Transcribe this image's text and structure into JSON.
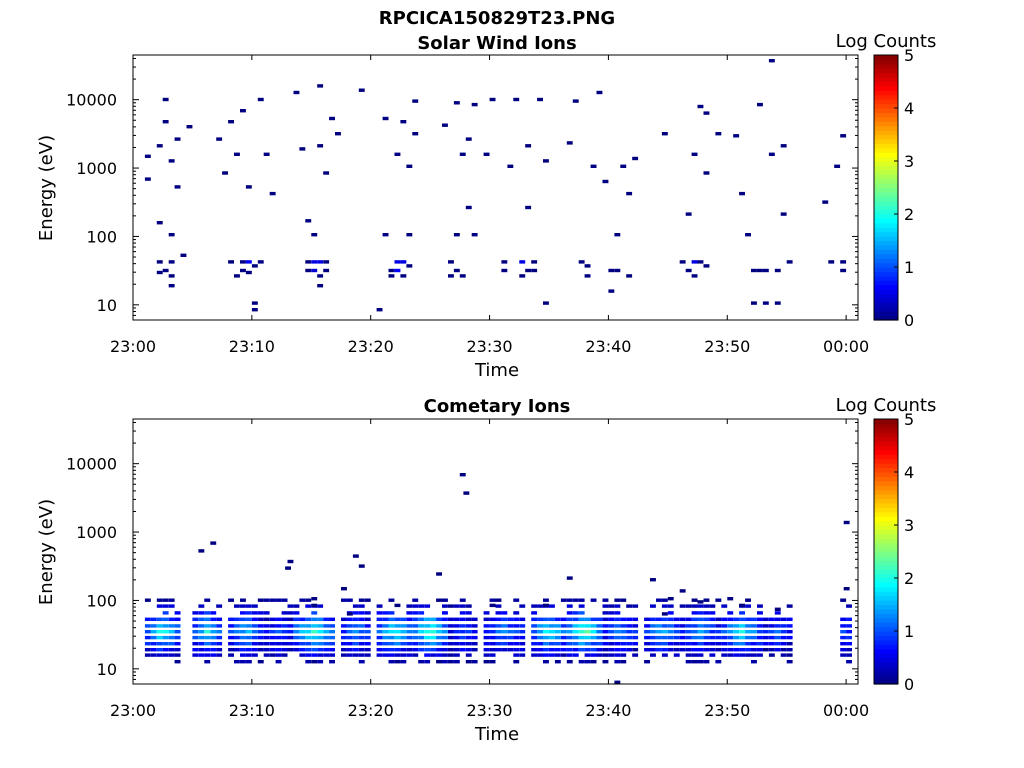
{
  "figure_title": "RPCICA150829T23.PNG",
  "chart_data": [
    {
      "type": "heatmap",
      "title": "Solar Wind Ions",
      "xlabel": "Time",
      "ylabel": "Energy (eV)",
      "y_scale": "log",
      "ylim": [
        6,
        45000
      ],
      "xlim": [
        "23:00",
        "00:01"
      ],
      "x_ticks": [
        "23:00",
        "23:10",
        "23:20",
        "23:30",
        "23:40",
        "23:50",
        "00:00"
      ],
      "y_ticks": [
        "10",
        "100",
        "1000",
        "10000"
      ],
      "colorbar": {
        "label": "Log Counts",
        "range": [
          0,
          5
        ],
        "ticks": [
          "0",
          "1",
          "2",
          "3",
          "4",
          "5"
        ],
        "colormap": "jet"
      },
      "grid": false,
      "cells": [
        {
          "t": 1.0,
          "e": 1400,
          "v": 0
        },
        {
          "t": 1.0,
          "e": 650,
          "v": 0
        },
        {
          "t": 2.0,
          "e": 40,
          "v": 0
        },
        {
          "t": 2.0,
          "e": 28,
          "v": 0
        },
        {
          "t": 2.0,
          "e": 150,
          "v": 0
        },
        {
          "t": 2.0,
          "e": 2000,
          "v": 0
        },
        {
          "t": 2.5,
          "e": 4500,
          "v": 0
        },
        {
          "t": 2.5,
          "e": 9500,
          "v": 0
        },
        {
          "t": 2.5,
          "e": 30,
          "v": 0
        },
        {
          "t": 3.0,
          "e": 40,
          "v": 0
        },
        {
          "t": 3.0,
          "e": 25,
          "v": 0
        },
        {
          "t": 3.0,
          "e": 18,
          "v": 0
        },
        {
          "t": 3.0,
          "e": 100,
          "v": 0
        },
        {
          "t": 3.5,
          "e": 2500,
          "v": 0
        },
        {
          "t": 3.5,
          "e": 500,
          "v": 0
        },
        {
          "t": 3.0,
          "e": 1200,
          "v": 0
        },
        {
          "t": 4.0,
          "e": 50,
          "v": 0
        },
        {
          "t": 4.5,
          "e": 3800,
          "v": 0
        },
        {
          "t": 7.0,
          "e": 2500,
          "v": 0
        },
        {
          "t": 7.5,
          "e": 800,
          "v": 0
        },
        {
          "t": 8.0,
          "e": 40,
          "v": 0
        },
        {
          "t": 8.0,
          "e": 4500,
          "v": 0
        },
        {
          "t": 8.5,
          "e": 25,
          "v": 0
        },
        {
          "t": 8.5,
          "e": 1500,
          "v": 0
        },
        {
          "t": 9.0,
          "e": 40,
          "v": 0
        },
        {
          "t": 9.0,
          "e": 30,
          "v": 0
        },
        {
          "t": 9.0,
          "e": 6500,
          "v": 0
        },
        {
          "t": 9.5,
          "e": 40,
          "v": 0.6
        },
        {
          "t": 9.5,
          "e": 28,
          "v": 0
        },
        {
          "t": 9.5,
          "e": 500,
          "v": 0
        },
        {
          "t": 10.0,
          "e": 35,
          "v": 0
        },
        {
          "t": 10.0,
          "e": 10,
          "v": 0
        },
        {
          "t": 10.0,
          "e": 8,
          "v": 0
        },
        {
          "t": 10.5,
          "e": 40,
          "v": 0
        },
        {
          "t": 10.5,
          "e": 9500,
          "v": 0
        },
        {
          "t": 11.0,
          "e": 1500,
          "v": 0
        },
        {
          "t": 11.5,
          "e": 400,
          "v": 0
        },
        {
          "t": 13.5,
          "e": 12000,
          "v": 0
        },
        {
          "t": 14.0,
          "e": 1800,
          "v": 0
        },
        {
          "t": 14.5,
          "e": 40,
          "v": 0
        },
        {
          "t": 14.5,
          "e": 30,
          "v": 0
        },
        {
          "t": 14.5,
          "e": 160,
          "v": 0
        },
        {
          "t": 15.0,
          "e": 40,
          "v": 0.5
        },
        {
          "t": 15.0,
          "e": 30,
          "v": 0.4
        },
        {
          "t": 15.0,
          "e": 100,
          "v": 0
        },
        {
          "t": 15.5,
          "e": 40,
          "v": 0.5
        },
        {
          "t": 15.5,
          "e": 25,
          "v": 0
        },
        {
          "t": 15.5,
          "e": 18,
          "v": 0
        },
        {
          "t": 15.5,
          "e": 2000,
          "v": 0
        },
        {
          "t": 16.0,
          "e": 40,
          "v": 0
        },
        {
          "t": 16.0,
          "e": 30,
          "v": 0
        },
        {
          "t": 16.0,
          "e": 800,
          "v": 0
        },
        {
          "t": 16.5,
          "e": 5000,
          "v": 0
        },
        {
          "t": 17.0,
          "e": 3000,
          "v": 0
        },
        {
          "t": 15.5,
          "e": 15000,
          "v": 0
        },
        {
          "t": 19.0,
          "e": 13000,
          "v": 0
        },
        {
          "t": 21.0,
          "e": 5000,
          "v": 0
        },
        {
          "t": 21.0,
          "e": 100,
          "v": 0
        },
        {
          "t": 21.5,
          "e": 30,
          "v": 0
        },
        {
          "t": 21.5,
          "e": 25,
          "v": 0
        },
        {
          "t": 22.0,
          "e": 40,
          "v": 0.5
        },
        {
          "t": 22.0,
          "e": 30,
          "v": 0.6
        },
        {
          "t": 22.0,
          "e": 1500,
          "v": 0
        },
        {
          "t": 22.5,
          "e": 40,
          "v": 0.5
        },
        {
          "t": 22.5,
          "e": 25,
          "v": 0
        },
        {
          "t": 22.5,
          "e": 4500,
          "v": 0
        },
        {
          "t": 23.0,
          "e": 35,
          "v": 0
        },
        {
          "t": 23.0,
          "e": 100,
          "v": 0
        },
        {
          "t": 23.0,
          "e": 1000,
          "v": 0
        },
        {
          "t": 23.5,
          "e": 3000,
          "v": 0
        },
        {
          "t": 23.5,
          "e": 9000,
          "v": 0
        },
        {
          "t": 20.5,
          "e": 8,
          "v": 0
        },
        {
          "t": 26.0,
          "e": 4000,
          "v": 0
        },
        {
          "t": 26.5,
          "e": 40,
          "v": 0
        },
        {
          "t": 26.5,
          "e": 25,
          "v": 0
        },
        {
          "t": 27.0,
          "e": 30,
          "v": 0
        },
        {
          "t": 27.0,
          "e": 100,
          "v": 0
        },
        {
          "t": 27.0,
          "e": 8500,
          "v": 0
        },
        {
          "t": 27.5,
          "e": 25,
          "v": 0
        },
        {
          "t": 27.5,
          "e": 1500,
          "v": 0
        },
        {
          "t": 28.0,
          "e": 2500,
          "v": 0
        },
        {
          "t": 28.0,
          "e": 250,
          "v": 0
        },
        {
          "t": 28.5,
          "e": 100,
          "v": 0
        },
        {
          "t": 28.5,
          "e": 8000,
          "v": 0
        },
        {
          "t": 29.5,
          "e": 1500,
          "v": 0
        },
        {
          "t": 30.0,
          "e": 9500,
          "v": 0
        },
        {
          "t": 31.0,
          "e": 40,
          "v": 0
        },
        {
          "t": 31.0,
          "e": 30,
          "v": 0
        },
        {
          "t": 31.5,
          "e": 1000,
          "v": 0
        },
        {
          "t": 32.0,
          "e": 9500,
          "v": 0
        },
        {
          "t": 32.5,
          "e": 40,
          "v": 0.5
        },
        {
          "t": 32.5,
          "e": 25,
          "v": 0
        },
        {
          "t": 33.0,
          "e": 30,
          "v": 0
        },
        {
          "t": 33.0,
          "e": 250,
          "v": 0
        },
        {
          "t": 33.0,
          "e": 2000,
          "v": 0
        },
        {
          "t": 33.5,
          "e": 40,
          "v": 0
        },
        {
          "t": 33.5,
          "e": 30,
          "v": 0
        },
        {
          "t": 34.0,
          "e": 9500,
          "v": 0
        },
        {
          "t": 34.5,
          "e": 1200,
          "v": 0
        },
        {
          "t": 34.5,
          "e": 10,
          "v": 0
        },
        {
          "t": 36.5,
          "e": 2200,
          "v": 0
        },
        {
          "t": 37.0,
          "e": 9000,
          "v": 0
        },
        {
          "t": 37.5,
          "e": 40,
          "v": 0
        },
        {
          "t": 38.0,
          "e": 35,
          "v": 0
        },
        {
          "t": 38.0,
          "e": 25,
          "v": 0
        },
        {
          "t": 38.5,
          "e": 1000,
          "v": 0
        },
        {
          "t": 39.0,
          "e": 12000,
          "v": 0
        },
        {
          "t": 39.5,
          "e": 600,
          "v": 0
        },
        {
          "t": 40.0,
          "e": 30,
          "v": 0
        },
        {
          "t": 40.0,
          "e": 15,
          "v": 0
        },
        {
          "t": 40.5,
          "e": 30,
          "v": 0
        },
        {
          "t": 40.5,
          "e": 100,
          "v": 0
        },
        {
          "t": 41.0,
          "e": 1000,
          "v": 0
        },
        {
          "t": 41.5,
          "e": 400,
          "v": 0
        },
        {
          "t": 41.5,
          "e": 25,
          "v": 0
        },
        {
          "t": 42.0,
          "e": 1300,
          "v": 0
        },
        {
          "t": 44.5,
          "e": 3000,
          "v": 0
        },
        {
          "t": 46.0,
          "e": 40,
          "v": 0
        },
        {
          "t": 46.5,
          "e": 30,
          "v": 0
        },
        {
          "t": 46.5,
          "e": 200,
          "v": 0
        },
        {
          "t": 47.0,
          "e": 40,
          "v": 0.5
        },
        {
          "t": 47.0,
          "e": 25,
          "v": 0
        },
        {
          "t": 47.0,
          "e": 1500,
          "v": 0
        },
        {
          "t": 47.5,
          "e": 40,
          "v": 0
        },
        {
          "t": 47.5,
          "e": 7500,
          "v": 0
        },
        {
          "t": 48.0,
          "e": 35,
          "v": 0
        },
        {
          "t": 48.0,
          "e": 800,
          "v": 0
        },
        {
          "t": 48.0,
          "e": 6000,
          "v": 0
        },
        {
          "t": 49.0,
          "e": 3000,
          "v": 0
        },
        {
          "t": 50.5,
          "e": 2800,
          "v": 0
        },
        {
          "t": 51.0,
          "e": 400,
          "v": 0
        },
        {
          "t": 51.5,
          "e": 100,
          "v": 0
        },
        {
          "t": 52.0,
          "e": 30,
          "v": 0
        },
        {
          "t": 52.0,
          "e": 10,
          "v": 0
        },
        {
          "t": 52.5,
          "e": 30,
          "v": 0
        },
        {
          "t": 52.5,
          "e": 8000,
          "v": 0
        },
        {
          "t": 53.0,
          "e": 30,
          "v": 0
        },
        {
          "t": 53.0,
          "e": 10,
          "v": 0
        },
        {
          "t": 53.5,
          "e": 1500,
          "v": 0
        },
        {
          "t": 53.5,
          "e": 35000,
          "v": 0
        },
        {
          "t": 54.0,
          "e": 30,
          "v": 0
        },
        {
          "t": 54.0,
          "e": 10,
          "v": 0
        },
        {
          "t": 54.5,
          "e": 200,
          "v": 0
        },
        {
          "t": 54.5,
          "e": 2000,
          "v": 0
        },
        {
          "t": 55.0,
          "e": 40,
          "v": 0
        },
        {
          "t": 58.0,
          "e": 300,
          "v": 0
        },
        {
          "t": 58.5,
          "e": 40,
          "v": 0
        },
        {
          "t": 59.0,
          "e": 1000,
          "v": 0
        },
        {
          "t": 59.5,
          "e": 40,
          "v": 0
        },
        {
          "t": 59.5,
          "e": 30,
          "v": 0
        },
        {
          "t": 59.5,
          "e": 2800,
          "v": 0
        }
      ]
    },
    {
      "type": "heatmap",
      "title": "Cometary Ions",
      "xlabel": "Time",
      "ylabel": "Energy (eV)",
      "y_scale": "log",
      "ylim": [
        6,
        45000
      ],
      "xlim": [
        "23:00",
        "00:01"
      ],
      "x_ticks": [
        "23:00",
        "23:10",
        "23:20",
        "23:30",
        "23:40",
        "23:50",
        "00:00"
      ],
      "y_ticks": [
        "10",
        "100",
        "1000",
        "10000"
      ],
      "colorbar": {
        "label": "Log Counts",
        "range": [
          0,
          5
        ],
        "ticks": [
          "0",
          "1",
          "2",
          "3",
          "4",
          "5"
        ],
        "colormap": "jet"
      },
      "grid": false,
      "bursts": [
        {
          "t0": 1.0,
          "t1": 3.5,
          "peak": 2.0
        },
        {
          "t0": 5.0,
          "t1": 7.0,
          "peak": 1.9
        },
        {
          "t0": 8.0,
          "t1": 10.5,
          "peak": 1.6
        },
        {
          "t0": 11.0,
          "t1": 13.0,
          "peak": 1.0
        },
        {
          "t0": 13.5,
          "t1": 16.5,
          "peak": 2.1
        },
        {
          "t0": 17.5,
          "t1": 19.5,
          "peak": 1.5
        },
        {
          "t0": 20.5,
          "t1": 23.0,
          "peak": 2.0
        },
        {
          "t0": 23.5,
          "t1": 26.0,
          "peak": 2.3
        },
        {
          "t0": 26.5,
          "t1": 28.5,
          "peak": 1.0
        },
        {
          "t0": 29.5,
          "t1": 32.5,
          "peak": 1.3
        },
        {
          "t0": 33.5,
          "t1": 36.0,
          "peak": 2.0
        },
        {
          "t0": 36.5,
          "t1": 39.0,
          "peak": 2.4
        },
        {
          "t0": 39.5,
          "t1": 42.0,
          "peak": 1.3
        },
        {
          "t0": 43.0,
          "t1": 45.5,
          "peak": 1.6
        },
        {
          "t0": 46.0,
          "t1": 49.0,
          "peak": 1.4
        },
        {
          "t0": 49.5,
          "t1": 52.5,
          "peak": 1.9
        },
        {
          "t0": 53.0,
          "t1": 55.0,
          "peak": 1.1
        },
        {
          "t0": 59.5,
          "t1": 60.0,
          "peak": 1.5
        }
      ],
      "cells": [
        {
          "t": 5.5,
          "e": 500,
          "v": 0
        },
        {
          "t": 6.5,
          "e": 650,
          "v": 0
        },
        {
          "t": 12.8,
          "e": 280,
          "v": 0
        },
        {
          "t": 13.0,
          "e": 350,
          "v": 0
        },
        {
          "t": 18.5,
          "e": 420,
          "v": 0
        },
        {
          "t": 19.0,
          "e": 300,
          "v": 0
        },
        {
          "t": 17.5,
          "e": 140,
          "v": 0
        },
        {
          "t": 18.0,
          "e": 60,
          "v": 0
        },
        {
          "t": 25.5,
          "e": 230,
          "v": 0
        },
        {
          "t": 27.5,
          "e": 6500,
          "v": 0
        },
        {
          "t": 27.8,
          "e": 3500,
          "v": 0
        },
        {
          "t": 36.5,
          "e": 200,
          "v": 0
        },
        {
          "t": 43.5,
          "e": 190,
          "v": 0
        },
        {
          "t": 40.5,
          "e": 6,
          "v": 0
        },
        {
          "t": 44.5,
          "e": 60,
          "v": 0
        },
        {
          "t": 59.8,
          "e": 1300,
          "v": 0
        },
        {
          "t": 15.0,
          "e": 100,
          "v": 0
        },
        {
          "t": 15.0,
          "e": 80,
          "v": 0
        },
        {
          "t": 22.0,
          "e": 80,
          "v": 0
        },
        {
          "t": 30.0,
          "e": 80,
          "v": 0
        },
        {
          "t": 34.5,
          "e": 80,
          "v": 0
        },
        {
          "t": 45.0,
          "e": 100,
          "v": 0
        },
        {
          "t": 46.0,
          "e": 130,
          "v": 0
        },
        {
          "t": 47.5,
          "e": 90,
          "v": 0
        },
        {
          "t": 50.0,
          "e": 100,
          "v": 0
        },
        {
          "t": 51.0,
          "e": 80,
          "v": 0
        },
        {
          "t": 54.0,
          "e": 70,
          "v": 0
        },
        {
          "t": 59.8,
          "e": 140,
          "v": 0
        }
      ]
    }
  ]
}
